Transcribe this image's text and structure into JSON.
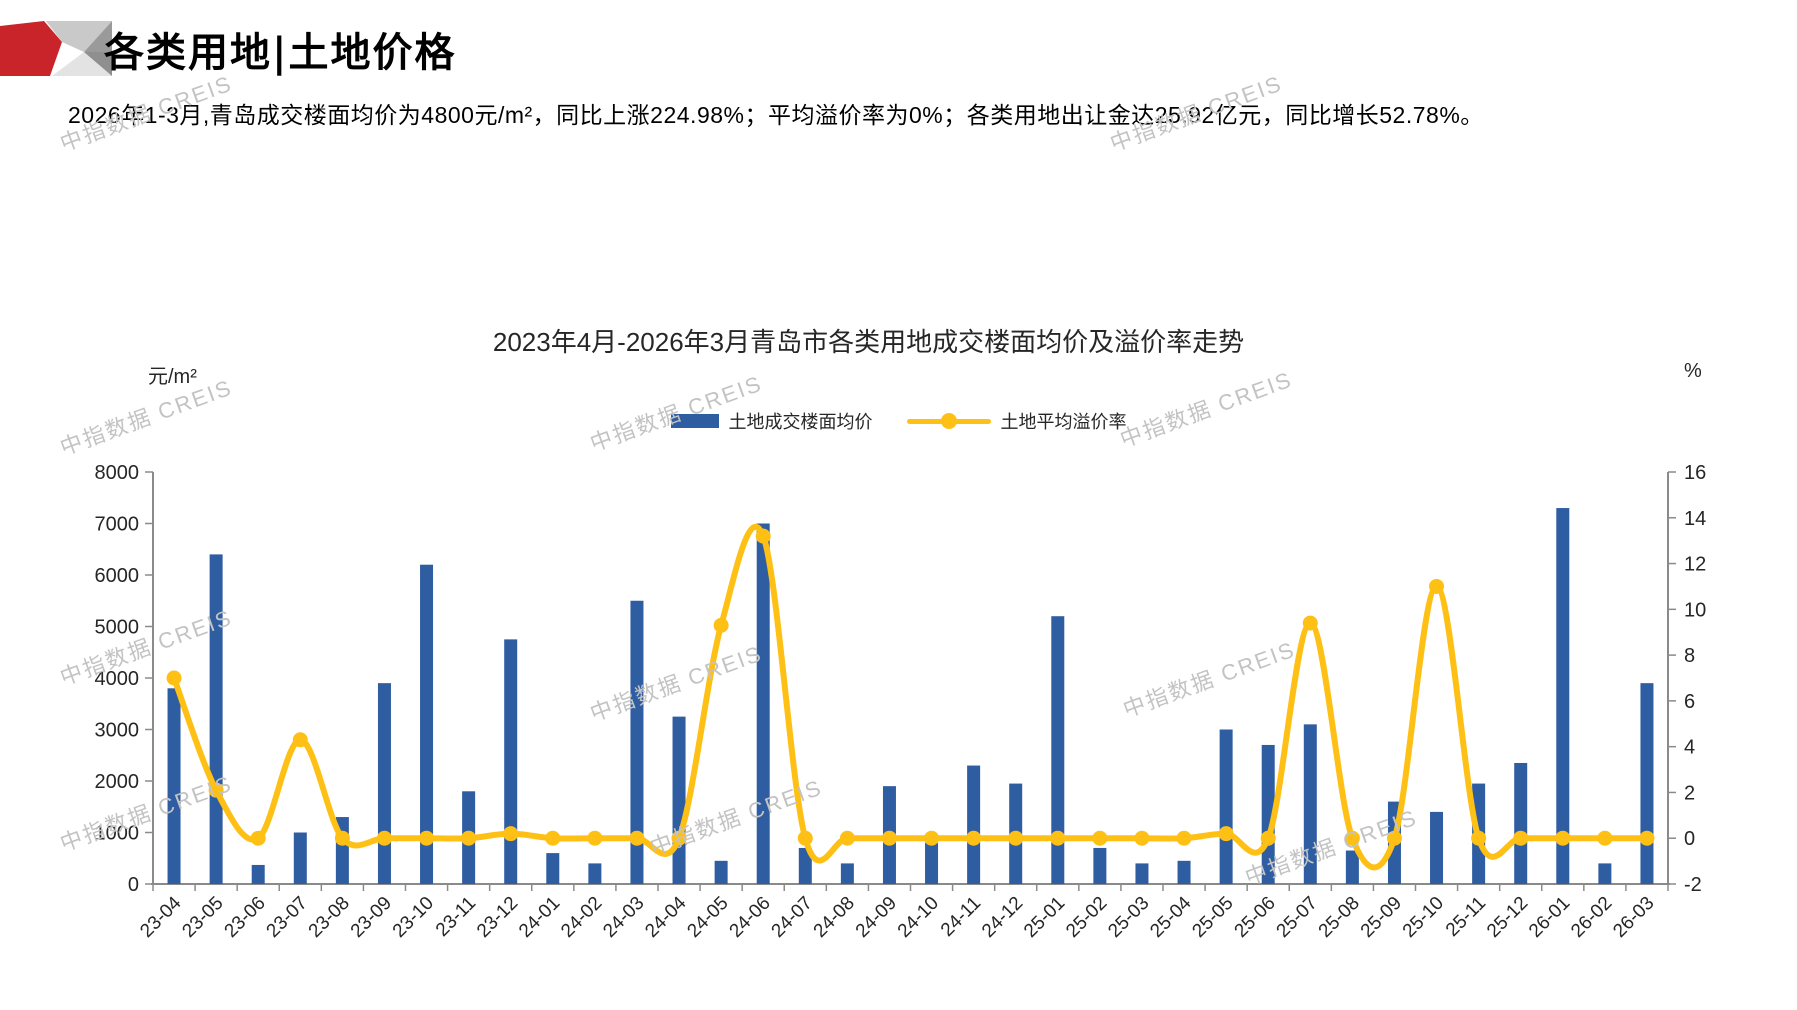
{
  "header": {
    "title": "各类用地|土地价格"
  },
  "subtitle": "2026年1-3月,青岛成交楼面均价为4800元/m²，同比上涨224.98%；平均溢价率为0%；各类用地出让金达25.92亿元，同比增长52.78%。",
  "watermark": {
    "text": "中指数据 CREIS"
  },
  "colors": {
    "bar-blue": "#2F5DA1",
    "line-gold": "#FFC015",
    "logo-red": "#C92429",
    "axis-gray": "#8a8a8a",
    "watermark-gray": "#c3c3c3"
  },
  "chart_data": {
    "type": "bar",
    "title": "2023年4月-2026年3月青岛市各类用地成交楼面均价及溢价率走势",
    "unit_left": "元/m²",
    "unit_right": "%",
    "legend": [
      "土地成交楼面均价",
      "土地平均溢价率"
    ],
    "legend_position": "top",
    "grid": false,
    "categories": [
      "23-04",
      "23-05",
      "23-06",
      "23-07",
      "23-08",
      "23-09",
      "23-10",
      "23-11",
      "23-12",
      "24-01",
      "24-02",
      "24-03",
      "24-04",
      "24-05",
      "24-06",
      "24-07",
      "24-08",
      "24-09",
      "24-10",
      "24-11",
      "24-12",
      "25-01",
      "25-02",
      "25-03",
      "25-04",
      "25-05",
      "25-06",
      "25-07",
      "25-08",
      "25-09",
      "25-10",
      "25-11",
      "25-12",
      "26-01",
      "26-02",
      "26-03"
    ],
    "series": [
      {
        "name": "土地成交楼面均价",
        "type": "bar",
        "axis": "left",
        "values": [
          3800,
          6400,
          370,
          1000,
          1300,
          3900,
          6200,
          1800,
          4750,
          600,
          400,
          5500,
          3250,
          450,
          7000,
          700,
          400,
          1900,
          800,
          2300,
          1950,
          5200,
          700,
          400,
          450,
          3000,
          2700,
          3100,
          650,
          1600,
          1400,
          1950,
          2350,
          7300,
          400,
          3900
        ]
      },
      {
        "name": "土地平均溢价率",
        "type": "line",
        "axis": "right",
        "values": [
          7.0,
          2.1,
          0,
          4.3,
          0,
          0,
          0,
          0,
          0.2,
          0,
          0,
          0,
          0,
          9.3,
          13.2,
          0,
          0,
          0,
          0,
          0,
          0,
          0,
          0,
          0,
          0,
          0.2,
          0,
          9.4,
          0,
          0,
          11.0,
          0,
          0,
          0,
          0,
          0
        ]
      }
    ],
    "ylim_left": [
      0,
      8000
    ],
    "ytick_left": 1000,
    "ylim_right": [
      -2,
      16
    ],
    "ytick_right": 2
  }
}
